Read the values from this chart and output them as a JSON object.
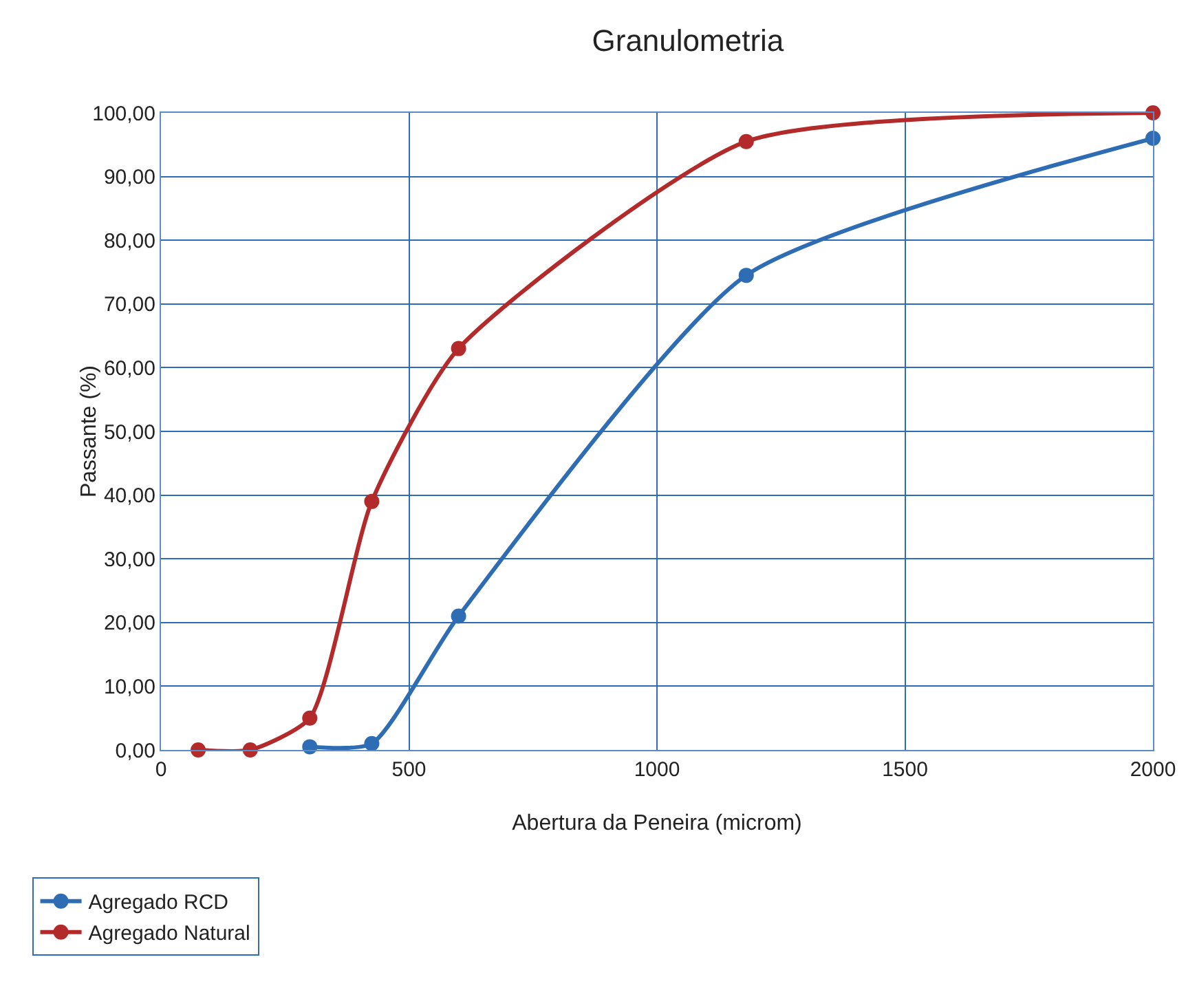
{
  "chart_data": {
    "type": "line",
    "title": "Granulometria",
    "xlabel": "Abertura da Peneira (microm)",
    "ylabel": "Passante (%)",
    "xlim": [
      0,
      2000
    ],
    "xticks": [
      0,
      500,
      1000,
      1500,
      2000
    ],
    "ylim": [
      0,
      100
    ],
    "yticks": [
      {
        "value": 0,
        "label": "0,00"
      },
      {
        "value": 10,
        "label": "10,00"
      },
      {
        "value": 20,
        "label": "20,00"
      },
      {
        "value": 30,
        "label": "30,00"
      },
      {
        "value": 40,
        "label": "40,00"
      },
      {
        "value": 50,
        "label": "50,00"
      },
      {
        "value": 60,
        "label": "60,00"
      },
      {
        "value": 70,
        "label": "70,00"
      },
      {
        "value": 80,
        "label": "80,00"
      },
      {
        "value": 90,
        "label": "90,00"
      },
      {
        "value": 100,
        "label": "100,00"
      }
    ],
    "grid": true,
    "legend": "bottom left",
    "marker": "circle",
    "line_style": "solid",
    "series": [
      {
        "name": "Agregado RCD",
        "color": "#2e6db4",
        "x": [
          300,
          425,
          600,
          1180,
          2000
        ],
        "values": [
          0.5,
          1,
          21,
          74.5,
          96
        ]
      },
      {
        "name": "Agregado Natural",
        "color": "#b22a2a",
        "x": [
          75,
          180,
          300,
          425,
          600,
          1180,
          2000
        ],
        "values": [
          0,
          0,
          5,
          39,
          63,
          95.5,
          100
        ]
      }
    ]
  }
}
